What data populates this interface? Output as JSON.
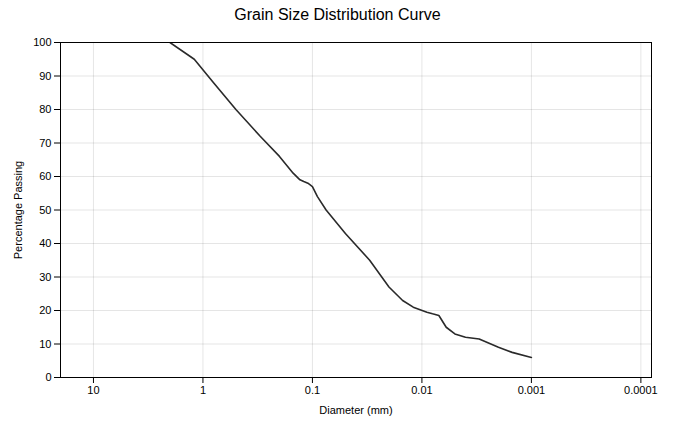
{
  "chart_data": {
    "type": "line",
    "title": "Grain Size Distribution Curve",
    "xlabel": "Diameter (mm)",
    "ylabel": "Percentage Passing",
    "x": [
      2.0,
      1.2,
      0.8,
      0.5,
      0.3,
      0.2,
      0.15,
      0.13,
      0.12,
      0.11,
      0.1,
      0.09,
      0.075,
      0.05,
      0.03,
      0.02,
      0.015,
      0.012,
      0.009,
      0.008,
      0.007,
      0.006,
      0.005,
      0.004,
      0.003,
      0.002,
      0.0015,
      0.001
    ],
    "values": [
      100,
      95,
      88,
      80,
      72,
      66,
      61,
      59,
      58.5,
      58,
      57,
      54,
      50,
      43,
      35,
      27,
      23,
      21,
      19.5,
      19,
      18.5,
      15,
      13,
      12,
      11.5,
      9,
      7.5,
      6
    ],
    "color": "#2a2a2a",
    "xlim": [
      20,
      8e-05
    ],
    "ylim": [
      0,
      100
    ],
    "xticks": [
      10,
      1,
      0.1,
      0.01,
      0.001,
      0.0001
    ],
    "yticks": [
      0,
      10,
      20,
      30,
      40,
      50,
      60,
      70,
      80,
      90,
      100
    ],
    "log": "x",
    "grid": true
  }
}
